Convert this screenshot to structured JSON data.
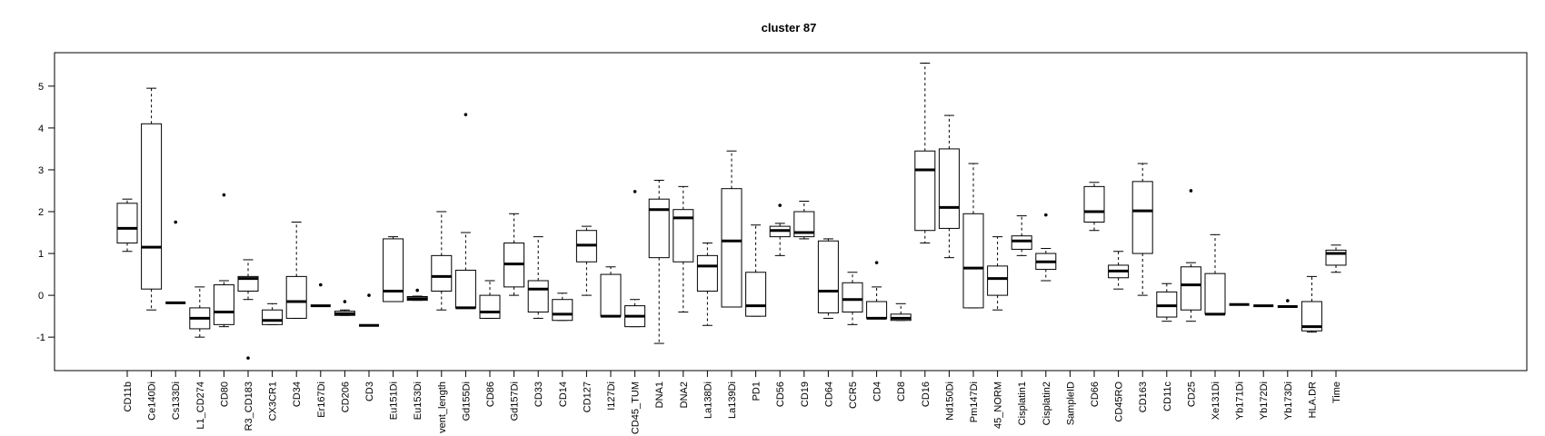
{
  "chart_data": {
    "type": "boxplot",
    "title": "cluster 87",
    "xlabel": "",
    "ylabel": "",
    "ylim": [
      -1.8,
      5.8
    ],
    "yticks": [
      -1,
      0,
      1,
      2,
      3,
      4,
      5
    ],
    "grid": false,
    "categories": [
      "CD11b",
      "Ce140Di",
      "Cs133Di",
      "L1_CD274",
      "CD80",
      "R3_CD183",
      "CX3CR1",
      "CD34",
      "Er167Di",
      "CD206",
      "CD3",
      "Eu151Di",
      "Eu153Di",
      "vent_length",
      "Gd155Di",
      "CD86",
      "Gd157Di",
      "CD33",
      "CD14",
      "CD127",
      "I127Di",
      "CD45_TUM",
      "DNA1",
      "DNA2",
      "La138Di",
      "La139Di",
      "PD1",
      "CD56",
      "CD19",
      "CD64",
      "CCR5",
      "CD4",
      "CD8",
      "CD16",
      "Nd150Di",
      "Pm147Di",
      "45_NORM",
      "Cisplatin1",
      "Cisplatin2",
      "SampleID",
      "CD66",
      "CD45RO",
      "CD163",
      "CD11c",
      "CD25",
      "Xe131Di",
      "Yb171Di",
      "Yb172Di",
      "Yb173Di",
      "HLA.DR",
      "Time"
    ],
    "boxes": [
      {
        "min": 1.05,
        "q1": 1.25,
        "median": 1.6,
        "q3": 2.2,
        "max": 2.3,
        "outliers": []
      },
      {
        "min": -0.35,
        "q1": 0.15,
        "median": 1.15,
        "q3": 4.1,
        "max": 4.95,
        "outliers": []
      },
      {
        "min": -0.18,
        "q1": -0.18,
        "median": -0.18,
        "q3": -0.18,
        "max": -0.18,
        "outliers": [
          1.75
        ]
      },
      {
        "min": -1.0,
        "q1": -0.8,
        "median": -0.55,
        "q3": -0.3,
        "max": 0.2,
        "outliers": []
      },
      {
        "min": -0.75,
        "q1": -0.7,
        "median": -0.4,
        "q3": 0.25,
        "max": 0.35,
        "outliers": [
          2.4
        ]
      },
      {
        "min": -0.1,
        "q1": 0.1,
        "median": 0.4,
        "q3": 0.45,
        "max": 0.85,
        "outliers": [
          -1.5
        ]
      },
      {
        "min": -0.7,
        "q1": -0.7,
        "median": -0.6,
        "q3": -0.35,
        "max": -0.2,
        "outliers": []
      },
      {
        "min": -0.55,
        "q1": -0.55,
        "median": -0.15,
        "q3": 0.45,
        "max": 1.75,
        "outliers": []
      },
      {
        "min": -0.25,
        "q1": -0.25,
        "median": -0.25,
        "q3": -0.25,
        "max": -0.25,
        "outliers": [
          0.25
        ]
      },
      {
        "min": -0.48,
        "q1": -0.48,
        "median": -0.44,
        "q3": -0.38,
        "max": -0.35,
        "outliers": [
          -0.15
        ]
      },
      {
        "min": -0.72,
        "q1": -0.72,
        "median": -0.72,
        "q3": -0.72,
        "max": -0.72,
        "outliers": [
          0.0
        ]
      },
      {
        "min": -0.15,
        "q1": -0.15,
        "median": 0.1,
        "q3": 1.35,
        "max": 1.4,
        "outliers": []
      },
      {
        "min": -0.12,
        "q1": -0.12,
        "median": -0.08,
        "q3": -0.03,
        "max": -0.02,
        "outliers": [
          0.12
        ]
      },
      {
        "min": -0.35,
        "q1": 0.1,
        "median": 0.45,
        "q3": 0.95,
        "max": 2.0,
        "outliers": []
      },
      {
        "min": -0.3,
        "q1": -0.3,
        "median": -0.3,
        "q3": 0.6,
        "max": 1.5,
        "outliers": [
          4.32
        ]
      },
      {
        "min": -0.55,
        "q1": -0.55,
        "median": -0.4,
        "q3": 0.0,
        "max": 0.35,
        "outliers": []
      },
      {
        "min": 0.0,
        "q1": 0.2,
        "median": 0.75,
        "q3": 1.25,
        "max": 1.95,
        "outliers": []
      },
      {
        "min": -0.55,
        "q1": -0.4,
        "median": 0.15,
        "q3": 0.35,
        "max": 1.4,
        "outliers": []
      },
      {
        "min": -0.6,
        "q1": -0.6,
        "median": -0.45,
        "q3": -0.1,
        "max": 0.05,
        "outliers": []
      },
      {
        "min": 0.0,
        "q1": 0.8,
        "median": 1.2,
        "q3": 1.55,
        "max": 1.65,
        "outliers": []
      },
      {
        "min": -0.5,
        "q1": -0.5,
        "median": -0.5,
        "q3": 0.5,
        "max": 0.68,
        "outliers": []
      },
      {
        "min": -0.75,
        "q1": -0.75,
        "median": -0.5,
        "q3": -0.25,
        "max": -0.1,
        "outliers": [
          2.48
        ]
      },
      {
        "min": -1.15,
        "q1": 0.9,
        "median": 2.05,
        "q3": 2.3,
        "max": 2.75,
        "outliers": []
      },
      {
        "min": -0.4,
        "q1": 0.8,
        "median": 1.85,
        "q3": 2.05,
        "max": 2.6,
        "outliers": []
      },
      {
        "min": -0.72,
        "q1": 0.1,
        "median": 0.7,
        "q3": 0.95,
        "max": 1.25,
        "outliers": []
      },
      {
        "min": -0.28,
        "q1": -0.28,
        "median": 1.3,
        "q3": 2.55,
        "max": 3.45,
        "outliers": []
      },
      {
        "min": -0.5,
        "q1": -0.5,
        "median": -0.25,
        "q3": 0.55,
        "max": 1.68,
        "outliers": []
      },
      {
        "min": 0.95,
        "q1": 1.4,
        "median": 1.55,
        "q3": 1.65,
        "max": 1.72,
        "outliers": [
          2.15
        ]
      },
      {
        "min": 1.35,
        "q1": 1.4,
        "median": 1.5,
        "q3": 2.0,
        "max": 2.25,
        "outliers": []
      },
      {
        "min": -0.55,
        "q1": -0.42,
        "median": 0.1,
        "q3": 1.3,
        "max": 1.35,
        "outliers": []
      },
      {
        "min": -0.7,
        "q1": -0.4,
        "median": -0.1,
        "q3": 0.3,
        "max": 0.55,
        "outliers": []
      },
      {
        "min": -0.55,
        "q1": -0.55,
        "median": -0.55,
        "q3": -0.15,
        "max": 0.2,
        "outliers": [
          0.78
        ]
      },
      {
        "min": -0.6,
        "q1": -0.6,
        "median": -0.55,
        "q3": -0.45,
        "max": -0.2,
        "outliers": []
      },
      {
        "min": 1.25,
        "q1": 1.55,
        "median": 3.0,
        "q3": 3.45,
        "max": 5.55,
        "outliers": []
      },
      {
        "min": 0.9,
        "q1": 1.6,
        "median": 2.1,
        "q3": 3.5,
        "max": 4.3,
        "outliers": []
      },
      {
        "min": -0.3,
        "q1": -0.3,
        "median": 0.65,
        "q3": 1.95,
        "max": 3.15,
        "outliers": []
      },
      {
        "min": -0.35,
        "q1": 0.0,
        "median": 0.4,
        "q3": 0.7,
        "max": 1.4,
        "outliers": []
      },
      {
        "min": 0.95,
        "q1": 1.1,
        "median": 1.3,
        "q3": 1.42,
        "max": 1.9,
        "outliers": []
      },
      {
        "min": 0.35,
        "q1": 0.62,
        "median": 0.8,
        "q3": 1.0,
        "max": 1.12,
        "outliers": [
          1.92
        ]
      },
      null,
      {
        "min": 1.55,
        "q1": 1.75,
        "median": 2.0,
        "q3": 2.6,
        "max": 2.7,
        "outliers": []
      },
      {
        "min": 0.15,
        "q1": 0.42,
        "median": 0.58,
        "q3": 0.72,
        "max": 1.05,
        "outliers": []
      },
      {
        "min": 0.0,
        "q1": 1.0,
        "median": 2.02,
        "q3": 2.72,
        "max": 3.15,
        "outliers": []
      },
      {
        "min": -0.62,
        "q1": -0.52,
        "median": -0.25,
        "q3": 0.08,
        "max": 0.28,
        "outliers": []
      },
      {
        "min": -0.62,
        "q1": -0.35,
        "median": 0.25,
        "q3": 0.68,
        "max": 0.78,
        "outliers": [
          2.5
        ]
      },
      {
        "min": -0.45,
        "q1": -0.45,
        "median": -0.45,
        "q3": 0.52,
        "max": 1.45,
        "outliers": []
      },
      {
        "min": -0.22,
        "q1": -0.22,
        "median": -0.22,
        "q3": -0.22,
        "max": -0.22,
        "outliers": []
      },
      {
        "min": -0.25,
        "q1": -0.25,
        "median": -0.25,
        "q3": -0.25,
        "max": -0.25,
        "outliers": []
      },
      {
        "min": -0.27,
        "q1": -0.27,
        "median": -0.27,
        "q3": -0.27,
        "max": -0.27,
        "outliers": [
          -0.13
        ]
      },
      {
        "min": -0.88,
        "q1": -0.85,
        "median": -0.75,
        "q3": -0.15,
        "max": 0.45,
        "outliers": []
      },
      {
        "min": 0.55,
        "q1": 0.72,
        "median": 1.0,
        "q3": 1.08,
        "max": 1.2,
        "outliers": []
      }
    ]
  }
}
